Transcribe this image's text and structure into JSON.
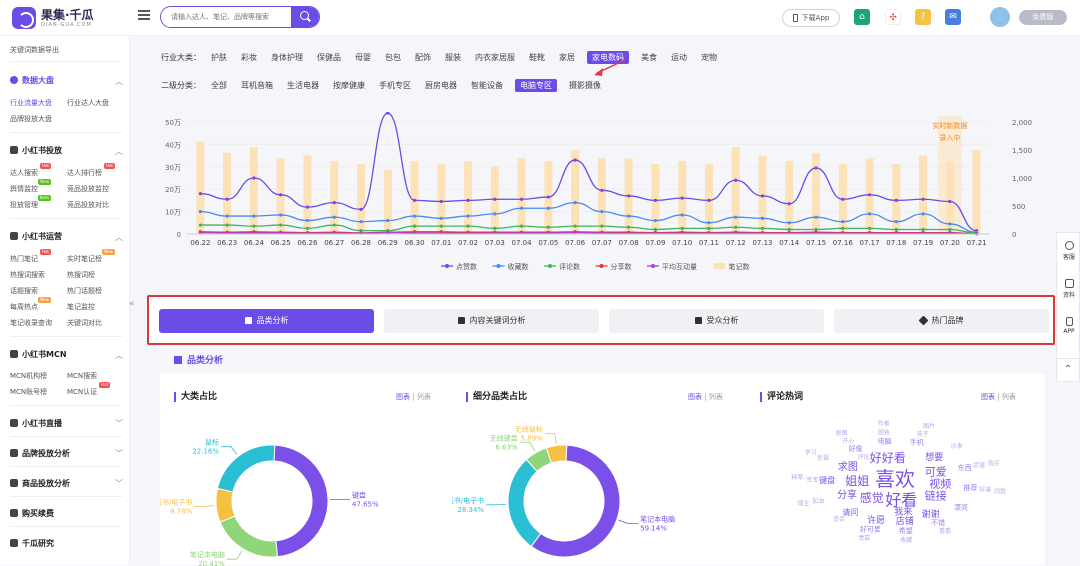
{
  "header": {
    "logo_title": "果集·千瓜",
    "logo_sub": "QIAN-GUA.COM",
    "search_placeholder": "请输入达人、笔记、品牌等搜索",
    "download_label": "下载App",
    "free_label": "免费版"
  },
  "sidebar": {
    "top_items": [
      {
        "label": "关键词数据导出"
      }
    ],
    "groups": [
      {
        "label": "数据大盘",
        "active": true,
        "items": [
          {
            "label": "行业流量大盘",
            "selected": true
          },
          {
            "label": "行业达人大盘"
          },
          {
            "label": "品牌投放大盘"
          }
        ]
      },
      {
        "label": "小红书投放",
        "items": [
          {
            "label": "达人搜索",
            "badge": "Hot"
          },
          {
            "label": "达人排行榜",
            "badge": "Hot"
          },
          {
            "label": "舆情监控",
            "badge": "New"
          },
          {
            "label": "竞品投放监控"
          },
          {
            "label": "投放管理",
            "badge": "Beta"
          },
          {
            "label": "竞品投放对比"
          }
        ]
      },
      {
        "label": "小红书运营",
        "items": [
          {
            "label": "热门笔记",
            "badge": "Hot"
          },
          {
            "label": "实时笔记榜",
            "badge": "New"
          },
          {
            "label": "热搜词搜索"
          },
          {
            "label": "热搜词榜"
          },
          {
            "label": "话题搜索"
          },
          {
            "label": "热门话题榜"
          },
          {
            "label": "每周热点",
            "badge": "New"
          },
          {
            "label": "笔记监控"
          },
          {
            "label": "笔记收录查询"
          },
          {
            "label": "关键词对比"
          }
        ]
      },
      {
        "label": "小红书MCN",
        "items": [
          {
            "label": "MCN机构榜"
          },
          {
            "label": "MCN搜索"
          },
          {
            "label": "MCN账号榜"
          },
          {
            "label": "MCN认证",
            "badge": "Hot"
          }
        ]
      },
      {
        "label": "小红书直播"
      },
      {
        "label": "品牌投放分析"
      },
      {
        "label": "商品投放分析"
      },
      {
        "label": "购买续费"
      },
      {
        "label": "千瓜研究"
      }
    ]
  },
  "filters": {
    "industry_label": "行业大类：",
    "industry": [
      "护肤",
      "彩妆",
      "身体护理",
      "保健品",
      "母婴",
      "包包",
      "配饰",
      "服装",
      "内衣家居服",
      "鞋靴",
      "家居",
      "家电数码",
      "美食",
      "运动",
      "宠物"
    ],
    "industry_selected": "家电数码",
    "sub_label": "二级分类：",
    "sub": [
      "全部",
      "耳机音箱",
      "生活电器",
      "按摩健康",
      "手机专区",
      "厨房电器",
      "智能设备",
      "电脑专区",
      "摄影摄像"
    ],
    "sub_selected": "电脑专区"
  },
  "chart_data": {
    "type": "line",
    "x": [
      "06.22",
      "06.23",
      "06.24",
      "06.25",
      "06.26",
      "06.27",
      "06.28",
      "06.29",
      "06.30",
      "07.01",
      "07.02",
      "07.03",
      "07.04",
      "07.05",
      "07.06",
      "07.07",
      "07.08",
      "07.09",
      "07.10",
      "07.11",
      "07.12",
      "07.13",
      "07.14",
      "07.15",
      "07.16",
      "07.17",
      "07.18",
      "07.19",
      "07.20",
      "07.21"
    ],
    "y_left_ticks": [
      "0",
      "10万",
      "20万",
      "30万",
      "40万",
      "50万"
    ],
    "y_right_ticks": [
      "0",
      "500",
      "1,000",
      "1,500",
      "2,000"
    ],
    "ylim_left": [
      0,
      500000
    ],
    "ylim_right": [
      0,
      2000
    ],
    "annotation": "实时新数据\n录入中",
    "bars": {
      "name": "笔记数",
      "color": "#fde2b8",
      "values": [
        1650,
        1450,
        1550,
        1350,
        1400,
        1300,
        1250,
        1150,
        1300,
        1250,
        1300,
        1200,
        1350,
        1300,
        1500,
        1350,
        1350,
        1250,
        1300,
        1250,
        1550,
        1400,
        1300,
        1450,
        1250,
        1350,
        1250,
        1400,
        1300,
        1500
      ]
    },
    "series": [
      {
        "name": "点赞数",
        "color": "#6b4ce6",
        "values": [
          180000,
          155000,
          250000,
          175000,
          120000,
          140000,
          110000,
          540000,
          150000,
          145000,
          150000,
          155000,
          155000,
          165000,
          330000,
          195000,
          170000,
          150000,
          160000,
          150000,
          240000,
          170000,
          135000,
          295000,
          155000,
          175000,
          150000,
          155000,
          145000,
          15000
        ]
      },
      {
        "name": "收藏数",
        "color": "#4a8af4",
        "values": [
          100000,
          80000,
          80000,
          85000,
          60000,
          75000,
          55000,
          60000,
          80000,
          70000,
          80000,
          90000,
          115000,
          115000,
          140000,
          100000,
          80000,
          60000,
          85000,
          50000,
          75000,
          70000,
          50000,
          75000,
          55000,
          90000,
          55000,
          90000,
          45000,
          8000
        ]
      },
      {
        "name": "评论数",
        "color": "#3cb55a",
        "values": [
          40000,
          40000,
          35000,
          40000,
          25000,
          40000,
          15000,
          15000,
          35000,
          35000,
          35000,
          25000,
          35000,
          30000,
          35000,
          35000,
          30000,
          20000,
          25000,
          25000,
          30000,
          25000,
          20000,
          20000,
          25000,
          25000,
          20000,
          20000,
          20000,
          5000
        ]
      },
      {
        "name": "分享数",
        "color": "#e03a3a",
        "values": [
          10000,
          8000,
          10000,
          8000,
          6000,
          8000,
          5000,
          8000,
          10000,
          10000,
          8000,
          8000,
          8000,
          8000,
          10000,
          8000,
          8000,
          6000,
          8000,
          6000,
          8000,
          6000,
          6000,
          8000,
          6000,
          6000,
          6000,
          6000,
          6000,
          2000
        ]
      },
      {
        "name": "平均互动量",
        "color": "#b03fd0",
        "values": [
          6000,
          5000,
          5000,
          5000,
          4000,
          4000,
          4000,
          6000,
          5000,
          4000,
          4000,
          5000,
          5000,
          5000,
          6000,
          5000,
          4000,
          4000,
          4000,
          4000,
          5000,
          4000,
          4000,
          5000,
          4000,
          4000,
          4000,
          4000,
          4000,
          1000
        ]
      }
    ],
    "legend_position": "bottom",
    "grid": true
  },
  "tabs": [
    {
      "label": "品类分析",
      "active": true
    },
    {
      "label": "内容关键词分析"
    },
    {
      "label": "受众分析"
    },
    {
      "label": "热门品牌"
    }
  ],
  "section": {
    "title": "品类分析",
    "chart_toggle": "图表",
    "list_toggle": "列表",
    "separator": "|",
    "panels": [
      {
        "title": "大类占比",
        "slices": [
          {
            "name": "键盘",
            "value": 47.65,
            "color": "#7b50e8"
          },
          {
            "name": "笔记本电脑",
            "value": 20.41,
            "color": "#8fd67a"
          },
          {
            "name": "电纸书/电子书",
            "value": 9.78,
            "color": "#f5c142"
          },
          {
            "name": "鼠标",
            "value": 22.16,
            "color": "#2bbfd6"
          }
        ]
      },
      {
        "title": "细分品类占比",
        "slices": [
          {
            "name": "笔记本电脑",
            "value": 59.14,
            "color": "#7b50e8"
          },
          {
            "name": "电纸书/电子书",
            "value": 28.34,
            "color": "#2bbfd6"
          },
          {
            "name": "无线键盘",
            "value": 6.63,
            "color": "#8fd67a"
          },
          {
            "name": "无线鼠标",
            "value": 5.89,
            "color": "#f5c142"
          }
        ]
      },
      {
        "title": "评论热词",
        "words": [
          {
            "t": "喜欢",
            "s": 20,
            "c": "#7b50e8"
          },
          {
            "t": "好看",
            "s": 16,
            "c": "#7b50e8"
          },
          {
            "t": "好好看",
            "s": 12,
            "c": "#7b50e8"
          },
          {
            "t": "感觉",
            "s": 12,
            "c": "#7b50e8"
          },
          {
            "t": "姐姐",
            "s": 12,
            "c": "#7b50e8"
          },
          {
            "t": "可爱",
            "s": 11,
            "c": "#7b50e8"
          },
          {
            "t": "视频",
            "s": 11,
            "c": "#7b50e8"
          },
          {
            "t": "链接",
            "s": 11,
            "c": "#7b50e8"
          },
          {
            "t": "分享",
            "s": 10,
            "c": "#7b50e8"
          },
          {
            "t": "求图",
            "s": 10,
            "c": "#7b50e8"
          },
          {
            "t": "我来",
            "s": 9,
            "c": "#7b50e8"
          },
          {
            "t": "想要",
            "s": 9,
            "c": "#7b50e8"
          },
          {
            "t": "谢谢",
            "s": 9,
            "c": "#7b50e8"
          },
          {
            "t": "店铺",
            "s": 9,
            "c": "#7b50e8"
          },
          {
            "t": "许愿",
            "s": 9,
            "c": "#7b50e8"
          },
          {
            "t": "请问",
            "s": 8,
            "c": "#7b50e8"
          },
          {
            "t": "键盘",
            "s": 8,
            "c": "#7b50e8"
          },
          {
            "t": "好像",
            "s": 7,
            "c": "#9a80ee"
          },
          {
            "t": "电脑",
            "s": 7,
            "c": "#9a80ee"
          },
          {
            "t": "手机",
            "s": 7,
            "c": "#9a80ee"
          },
          {
            "t": "东西",
            "s": 7,
            "c": "#9a80ee"
          },
          {
            "t": "推荐",
            "s": 7,
            "c": "#9a80ee"
          },
          {
            "t": "漂亮",
            "s": 7,
            "c": "#9a80ee"
          },
          {
            "t": "不错",
            "s": 7,
            "c": "#9a80ee"
          },
          {
            "t": "希望",
            "s": 7,
            "c": "#9a80ee"
          },
          {
            "t": "好可爱",
            "s": 7,
            "c": "#9a80ee"
          },
          {
            "t": "评论",
            "s": 6,
            "c": "#b8a8f0"
          },
          {
            "t": "适合",
            "s": 6,
            "c": "#b8a8f0"
          },
          {
            "t": "加油",
            "s": 6,
            "c": "#b8a8f0"
          },
          {
            "t": "宝宝",
            "s": 6,
            "c": "#b8a8f0"
          },
          {
            "t": "幸福",
            "s": 6,
            "c": "#b8a8f0"
          },
          {
            "t": "开心",
            "s": 6,
            "c": "#b8a8f0"
          },
          {
            "t": "颜色",
            "s": 6,
            "c": "#b8a8f0"
          },
          {
            "t": "孩子",
            "s": 6,
            "c": "#b8a8f0"
          },
          {
            "t": "沙发",
            "s": 6,
            "c": "#b8a8f0"
          },
          {
            "t": "厉害",
            "s": 6,
            "c": "#b8a8f0"
          },
          {
            "t": "好美",
            "s": 6,
            "c": "#b8a8f0"
          },
          {
            "t": "看看",
            "s": 6,
            "c": "#b8a8f0"
          },
          {
            "t": "收藏",
            "s": 6,
            "c": "#b8a8f0"
          },
          {
            "t": "羡慕",
            "s": 6,
            "c": "#b8a8f0"
          },
          {
            "t": "博主",
            "s": 6,
            "c": "#b8a8f0"
          },
          {
            "t": "种草",
            "s": 6,
            "c": "#b8a8f0"
          },
          {
            "t": "学习",
            "s": 6,
            "c": "#b8a8f0"
          },
          {
            "t": "原图",
            "s": 6,
            "c": "#b8a8f0"
          },
          {
            "t": "作者",
            "s": 6,
            "c": "#b8a8f0"
          },
          {
            "t": "图片",
            "s": 6,
            "c": "#b8a8f0"
          },
          {
            "t": "购买",
            "s": 6,
            "c": "#b8a8f0"
          },
          {
            "t": "同款",
            "s": 6,
            "c": "#b8a8f0"
          }
        ]
      }
    ]
  },
  "side_tools": [
    {
      "label": "客服"
    },
    {
      "label": "资料"
    },
    {
      "label": "APP"
    }
  ]
}
